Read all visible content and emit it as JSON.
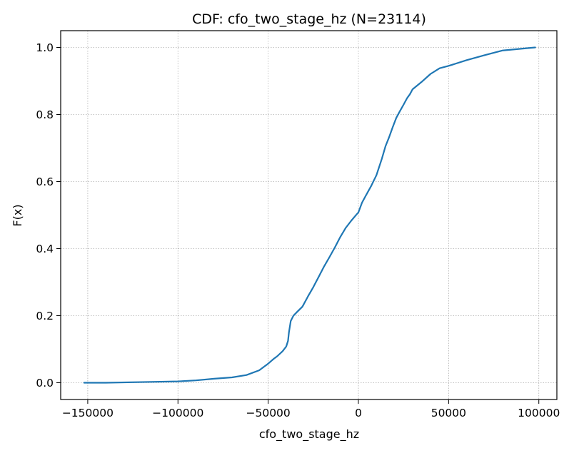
{
  "chart_data": {
    "type": "line",
    "title": "CDF: cfo_two_stage_hz  (N=23114)",
    "xlabel": "cfo_two_stage_hz",
    "ylabel": "F(x)",
    "xlim": [
      -165000,
      110000
    ],
    "ylim": [
      -0.05,
      1.05
    ],
    "xticks": [
      -150000,
      -100000,
      -50000,
      0,
      50000,
      100000
    ],
    "xtick_labels": [
      "−150000",
      "−100000",
      "−50000",
      "0",
      "50000",
      "100000"
    ],
    "yticks": [
      0.0,
      0.2,
      0.4,
      0.6,
      0.8,
      1.0
    ],
    "ytick_labels": [
      "0.0",
      "0.2",
      "0.4",
      "0.6",
      "0.8",
      "1.0"
    ],
    "grid": true,
    "line_color": "#1f77b4",
    "series": [
      {
        "x": [
          -152000,
          -140000,
          -120000,
          -100000,
          -90000,
          -80000,
          -70000,
          -62000,
          -55000,
          -50000,
          -47000,
          -45000,
          -42000,
          -40000,
          -39000,
          -38500,
          -37500,
          -36000,
          -34000,
          -31000,
          -28000,
          -25000,
          -22000,
          -19000,
          -16000,
          -13000,
          -10000,
          -7000,
          -4000,
          -1000,
          0,
          2000,
          4000,
          7000,
          10000,
          13000,
          15000,
          17000,
          19000,
          21000,
          23000,
          25000,
          27000,
          28500,
          30000,
          35000,
          40000,
          45000,
          50000,
          60000,
          70000,
          80000,
          90000,
          98000
        ],
        "y": [
          0.0,
          0.0,
          0.002,
          0.004,
          0.007,
          0.012,
          0.016,
          0.023,
          0.037,
          0.057,
          0.071,
          0.079,
          0.094,
          0.108,
          0.125,
          0.15,
          0.184,
          0.2,
          0.211,
          0.227,
          0.257,
          0.285,
          0.316,
          0.347,
          0.375,
          0.404,
          0.435,
          0.462,
          0.483,
          0.502,
          0.508,
          0.537,
          0.557,
          0.586,
          0.619,
          0.668,
          0.705,
          0.732,
          0.762,
          0.79,
          0.81,
          0.829,
          0.849,
          0.86,
          0.875,
          0.897,
          0.921,
          0.938,
          0.945,
          0.962,
          0.977,
          0.991,
          0.996,
          1.0
        ]
      }
    ]
  }
}
